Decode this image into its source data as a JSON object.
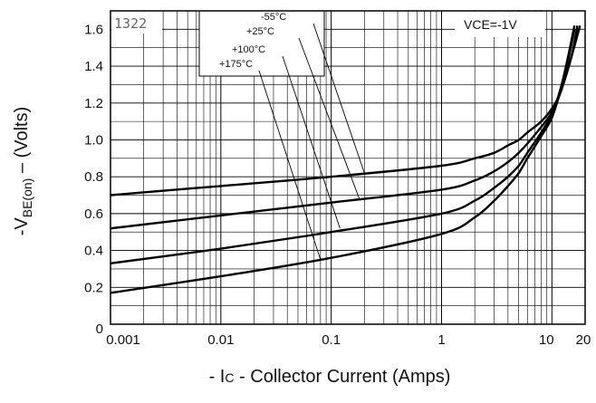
{
  "chart_data": {
    "type": "line",
    "figure_number": "1322",
    "x_axis": {
      "label_prefix": "- I",
      "label_sub": "C",
      "label_suffix": " - Collector Current (Amps)",
      "scale": "log",
      "range": [
        0.001,
        20
      ],
      "tick_values": [
        0.001,
        0.01,
        0.1,
        1,
        10,
        20
      ],
      "tick_labels": [
        "0.001",
        "0.01",
        "0.1",
        "1",
        "10",
        "20"
      ]
    },
    "y_axis": {
      "label_prefix": "-V",
      "label_sub": "BE(on)",
      "label_suffix": " – (Volts)",
      "scale": "linear",
      "range": [
        0,
        1.7
      ],
      "tick_values": [
        0,
        0.2,
        0.4,
        0.6,
        0.8,
        1.0,
        1.2,
        1.4,
        1.6
      ],
      "tick_labels": [
        "0",
        "0.2",
        "0.4",
        "0.6",
        "0.8",
        "1.0",
        "1.2",
        "1.4",
        "1.6"
      ]
    },
    "grid": true,
    "condition": "VCE=-1V",
    "series": [
      {
        "name": "-55°C",
        "x": [
          0.001,
          0.01,
          0.1,
          1,
          2,
          3,
          4,
          5,
          6,
          8,
          10,
          12,
          15,
          18
        ],
        "y": [
          0.7,
          0.75,
          0.8,
          0.86,
          0.9,
          0.93,
          0.97,
          1.0,
          1.04,
          1.1,
          1.17,
          1.26,
          1.45,
          1.62
        ]
      },
      {
        "name": "+25°C",
        "x": [
          0.001,
          0.01,
          0.1,
          1,
          2,
          3,
          4,
          5,
          6,
          8,
          10,
          12,
          15,
          17
        ],
        "y": [
          0.52,
          0.59,
          0.66,
          0.73,
          0.78,
          0.83,
          0.88,
          0.93,
          0.98,
          1.07,
          1.15,
          1.26,
          1.45,
          1.62
        ]
      },
      {
        "name": "+100°C",
        "x": [
          0.001,
          0.01,
          0.1,
          1,
          2,
          3,
          4,
          5,
          6,
          8,
          10,
          12,
          14,
          16
        ],
        "y": [
          0.33,
          0.41,
          0.5,
          0.6,
          0.67,
          0.74,
          0.8,
          0.86,
          0.93,
          1.04,
          1.14,
          1.28,
          1.45,
          1.62
        ]
      },
      {
        "name": "+175°C",
        "x": [
          0.001,
          0.01,
          0.1,
          1,
          2,
          3,
          4,
          5,
          6,
          8,
          10,
          12,
          14,
          16
        ],
        "y": [
          0.17,
          0.26,
          0.36,
          0.49,
          0.58,
          0.67,
          0.75,
          0.82,
          0.9,
          1.02,
          1.12,
          1.27,
          1.43,
          1.6
        ]
      }
    ],
    "annotations": [
      {
        "text": "-55°C",
        "points_to": [
          0.2,
          0.82
        ]
      },
      {
        "text": "+25°C",
        "points_to": [
          0.18,
          0.68
        ]
      },
      {
        "text": "+100°C",
        "points_to": [
          0.12,
          0.52
        ]
      },
      {
        "text": "+175°C",
        "points_to": [
          0.08,
          0.35
        ]
      }
    ],
    "colors": {
      "line": "#000000",
      "grid": "#000000",
      "annotation_box": "#ffffff"
    }
  }
}
